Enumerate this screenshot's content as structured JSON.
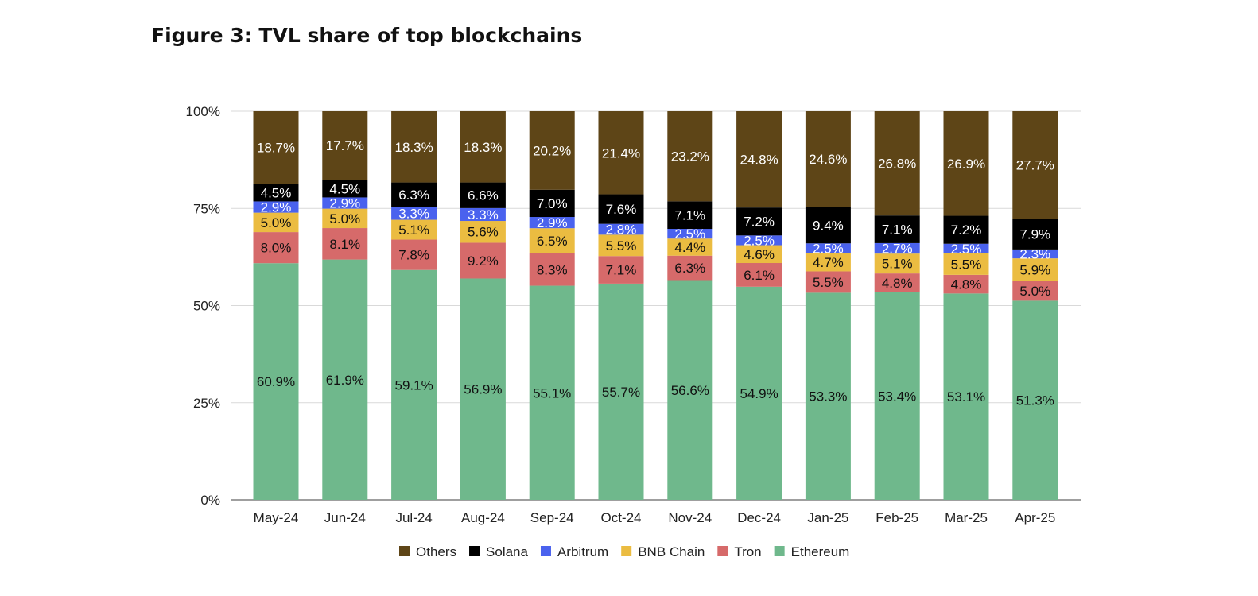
{
  "title": "Figure 3: TVL share of top blockchains",
  "colors": {
    "Ethereum": "#6fb88c",
    "Tron": "#d66a6a",
    "BNB Chain": "#ebbc41",
    "Arbitrum": "#4a62ee",
    "Solana": "#000000",
    "Others": "#5e4517"
  },
  "label_colors": {
    "Ethereum": "#111111",
    "Tron": "#111111",
    "BNB Chain": "#111111",
    "Arbitrum": "#ffffff",
    "Solana": "#ffffff",
    "Others": "#ffffff"
  },
  "chart_data": {
    "type": "bar",
    "stacked": true,
    "percent_scale": true,
    "title": "",
    "xlabel": "",
    "ylabel": "",
    "ylim": [
      0,
      100
    ],
    "yticks": [
      "0%",
      "25%",
      "50%",
      "75%",
      "100%"
    ],
    "grid": true,
    "legend_position": "bottom",
    "categories": [
      "May-24",
      "Jun-24",
      "Jul-24",
      "Aug-24",
      "Sep-24",
      "Oct-24",
      "Nov-24",
      "Dec-24",
      "Jan-25",
      "Feb-25",
      "Mar-25",
      "Apr-25"
    ],
    "series": [
      {
        "name": "Ethereum",
        "values": [
          60.9,
          61.9,
          59.1,
          56.9,
          55.1,
          55.7,
          56.6,
          54.9,
          53.3,
          53.4,
          53.1,
          51.3
        ],
        "labels": [
          "60.9%",
          "61.9%",
          "59.1%",
          "56.9%",
          "55.1%",
          "55.7%",
          "56.6%",
          "54.9%",
          "53.3%",
          "53.4%",
          "53.1%",
          "51.3%"
        ]
      },
      {
        "name": "Tron",
        "values": [
          8.0,
          8.1,
          7.8,
          9.2,
          8.3,
          7.1,
          6.3,
          6.1,
          5.5,
          4.8,
          4.8,
          5.0
        ],
        "labels": [
          "8.0%",
          "8.1%",
          "7.8%",
          "9.2%",
          "8.3%",
          "7.1%",
          "6.3%",
          "6.1%",
          "5.5%",
          "4.8%",
          "4.8%",
          "5.0%"
        ]
      },
      {
        "name": "BNB Chain",
        "values": [
          5.0,
          5.0,
          5.1,
          5.6,
          6.5,
          5.5,
          4.4,
          4.6,
          4.7,
          5.1,
          5.5,
          5.9
        ],
        "labels": [
          "5.0%",
          "5.0%",
          "5.1%",
          "5.6%",
          "6.5%",
          "5.5%",
          "4.4%",
          "4.6%",
          "4.7%",
          "5.1%",
          "5.5%",
          "5.9%"
        ]
      },
      {
        "name": "Arbitrum",
        "values": [
          2.9,
          2.9,
          3.3,
          3.3,
          2.9,
          2.8,
          2.5,
          2.5,
          2.5,
          2.7,
          2.5,
          2.3
        ],
        "labels": [
          "2.9%",
          "2.9%",
          "3.3%",
          "3.3%",
          "2.9%",
          "2.8%",
          "2.5%",
          "2.5%",
          "2.5%",
          "2.7%",
          "2.5%",
          "2.3%"
        ]
      },
      {
        "name": "Solana",
        "values": [
          4.5,
          4.5,
          6.3,
          6.6,
          7.0,
          7.6,
          7.1,
          7.2,
          9.4,
          7.1,
          7.2,
          7.9
        ],
        "labels": [
          "4.5%",
          "4.5%",
          "6.3%",
          "6.6%",
          "7.0%",
          "7.6%",
          "7.1%",
          "7.2%",
          "9.4%",
          "7.1%",
          "7.2%",
          "7.9%"
        ]
      },
      {
        "name": "Others",
        "values": [
          18.7,
          17.7,
          18.3,
          18.3,
          20.2,
          21.4,
          23.2,
          24.8,
          24.6,
          26.8,
          26.9,
          27.7
        ],
        "labels": [
          "18.7%",
          "17.7%",
          "18.3%",
          "18.3%",
          "20.2%",
          "21.4%",
          "23.2%",
          "24.8%",
          "24.6%",
          "26.8%",
          "26.9%",
          "27.7%"
        ]
      }
    ],
    "legend_order": [
      "Others",
      "Solana",
      "Arbitrum",
      "BNB Chain",
      "Tron",
      "Ethereum"
    ]
  }
}
